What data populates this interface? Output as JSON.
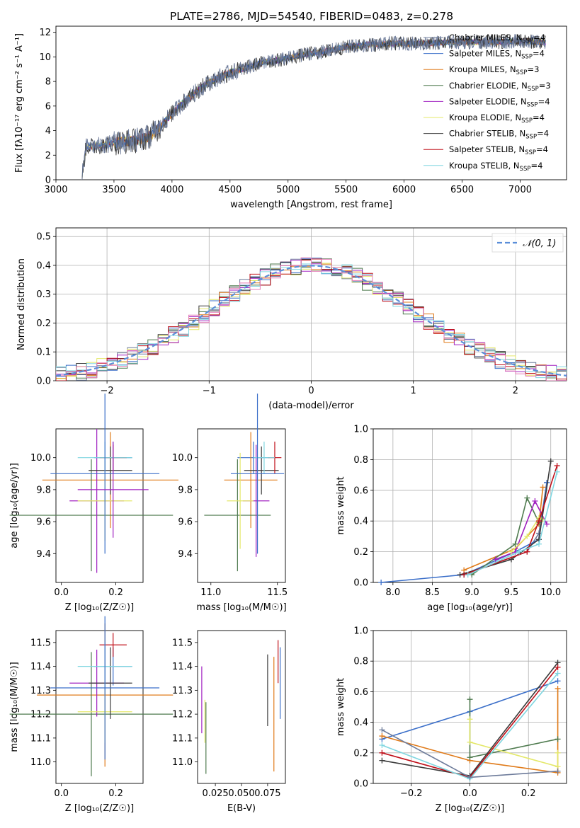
{
  "figure": {
    "title": "PLATE=2786, MJD=54540, FIBERID=0483, z=0.278",
    "models": [
      {
        "name": "Chabrier MILES",
        "nssp": "4",
        "color": "#6d7b9a"
      },
      {
        "name": "Salpeter MILES",
        "nssp": "4",
        "color": "#3b6fc9"
      },
      {
        "name": "Kroupa MILES",
        "nssp": "3",
        "color": "#e07b1a"
      },
      {
        "name": "Chabrier ELODIE",
        "nssp": "3",
        "color": "#4e7a4e"
      },
      {
        "name": "Salpeter ELODIE",
        "nssp": "4",
        "color": "#a020c0"
      },
      {
        "name": "Kroupa ELODIE",
        "nssp": "4",
        "color": "#e4e86a"
      },
      {
        "name": "Chabrier STELIB",
        "nssp": "4",
        "color": "#3a3a3a"
      },
      {
        "name": "Salpeter STELIB",
        "nssp": "4",
        "color": "#c0101a"
      },
      {
        "name": "Kroupa STELIB",
        "nssp": "4",
        "color": "#7fd6e0"
      }
    ],
    "extra_colors": {
      "pink": "#e57fb8",
      "blue": "#5b8ed9",
      "gauss": "#5b8ed9",
      "grid": "#b0b0b0"
    }
  },
  "chart_data": [
    {
      "id": "spectrum",
      "type": "line",
      "xlabel": "wavelength [Angstrom, rest frame]",
      "ylabel": "Flux [fλ10⁻¹⁷ erg cm⁻² s⁻¹ A⁻¹]",
      "xlim": [
        3000,
        7400
      ],
      "ylim": [
        0,
        12.5
      ],
      "xticks": [
        "3000",
        "3500",
        "4000",
        "4500",
        "5000",
        "5500",
        "6000",
        "6500",
        "7000"
      ],
      "yticks": [
        "0",
        "2",
        "4",
        "6",
        "8",
        "10",
        "12"
      ],
      "grid": false,
      "legend": "upper right",
      "legend_entries": [
        "Chabrier MILES, N_SSP=4",
        "Salpeter MILES, N_SSP=4",
        "Kroupa MILES, N_SSP=3",
        "Chabrier ELODIE, N_SSP=3",
        "Salpeter ELODIE, N_SSP=4",
        "Kroupa ELODIE, N_SSP=4",
        "Chabrier STELIB, N_SSP=4",
        "Salpeter STELIB, N_SSP=4",
        "Kroupa STELIB, N_SSP=4"
      ],
      "continuum_x": [
        3220,
        3260,
        3400,
        3500,
        3700,
        3800,
        3900,
        4000,
        4100,
        4200,
        4300,
        4400,
        4500,
        4600,
        4700,
        4800,
        4900,
        5000,
        5100,
        5200,
        5300,
        5400,
        5500,
        5600,
        5700,
        5800,
        5900,
        6000,
        6200,
        6400,
        6600,
        6800,
        7000,
        7200
      ],
      "continuum_y": [
        0,
        2.7,
        2.8,
        3.0,
        3.2,
        3.5,
        4.3,
        5.4,
        6.3,
        7.1,
        7.8,
        8.3,
        8.7,
        9.0,
        9.3,
        9.6,
        9.7,
        9.9,
        10.1,
        10.3,
        10.4,
        10.6,
        10.8,
        10.9,
        11.0,
        11.0,
        11.1,
        11.1,
        11.1,
        11.2,
        11.2,
        11.2,
        11.3,
        11.2
      ]
    },
    {
      "id": "residuals",
      "type": "histogram",
      "xlabel": "(data-model)/error",
      "ylabel": "Normed distribution",
      "xlim": [
        -2.5,
        2.5
      ],
      "ylim": [
        0,
        0.53
      ],
      "xticks": [
        "−2",
        "−1",
        "0",
        "1",
        "2"
      ],
      "yticks": [
        "0.0",
        "0.1",
        "0.2",
        "0.3",
        "0.4",
        "0.5"
      ],
      "grid": true,
      "legend": "upper right",
      "gauss_label": "𝒩(0, 1)",
      "bin_width": 0.1
    },
    {
      "id": "age-vs-Z",
      "type": "errorbar",
      "xlabel": "Z [log₁₀(Z/Z☉)]",
      "ylabel": "age  [log₁₀(age/yr)]",
      "xlim": [
        -0.02,
        0.3
      ],
      "ylim": [
        9.22,
        10.18
      ],
      "xticks": [
        "0.0",
        "0.2"
      ],
      "yticks": [
        "9.4",
        "9.6",
        "9.8",
        "10.0"
      ],
      "points": [
        {
          "x": 0.19,
          "y": 10.0,
          "xerr": 0.07,
          "yerr": 0.1,
          "model": "Salpeter MILES"
        },
        {
          "x": 0.18,
          "y": 9.86,
          "xerr": 0.25,
          "yerr": 0.3,
          "model": "Kroupa MILES"
        },
        {
          "x": 0.11,
          "y": 9.64,
          "xerr": 0.3,
          "yerr": 0.35,
          "model": "Chabrier ELODIE"
        },
        {
          "x": 0.13,
          "y": 9.73,
          "xerr": 0.1,
          "yerr": 0.45,
          "model": "Salpeter ELODIE"
        },
        {
          "x": 0.16,
          "y": 9.73,
          "xerr": 0.1,
          "yerr": 0.25,
          "model": "Kroupa ELODIE"
        },
        {
          "x": 0.18,
          "y": 9.92,
          "xerr": 0.08,
          "yerr": 0.15,
          "model": "Chabrier STELIB"
        },
        {
          "x": 0.19,
          "y": 10.0,
          "xerr": 0.05,
          "yerr": 0.08,
          "model": "Salpeter STELIB"
        },
        {
          "x": 0.16,
          "y": 10.0,
          "xerr": 0.1,
          "yerr": 0.1,
          "model": "Kroupa STELIB"
        },
        {
          "x": 0.16,
          "y": 9.9,
          "xerr": 0.2,
          "yerr": 0.5,
          "model": "Salpeter MILES"
        },
        {
          "x": 0.19,
          "y": 9.8,
          "xerr": 0.13,
          "yerr": 0.3,
          "model": "Salpeter ELODIE"
        }
      ]
    },
    {
      "id": "age-vs-mass",
      "type": "errorbar",
      "xlabel": "mass [log₁₀(M/M☉)]",
      "ylabel": "",
      "xlim": [
        10.9,
        11.56
      ],
      "ylim": [
        9.22,
        10.18
      ],
      "xticks": [
        "11.0",
        "11.5"
      ],
      "yticks": [
        "9.4",
        "9.6",
        "9.8",
        "10.0"
      ],
      "points": [
        {
          "x": 11.32,
          "y": 10.0,
          "xerr": 0.12,
          "yerr": 0.1,
          "model": "Salpeter MILES"
        },
        {
          "x": 11.3,
          "y": 9.86,
          "xerr": 0.2,
          "yerr": 0.3,
          "model": "Kroupa MILES"
        },
        {
          "x": 11.2,
          "y": 9.64,
          "xerr": 0.25,
          "yerr": 0.35,
          "model": "Chabrier ELODIE"
        },
        {
          "x": 11.34,
          "y": 9.73,
          "xerr": 0.1,
          "yerr": 0.35,
          "model": "Salpeter ELODIE"
        },
        {
          "x": 11.22,
          "y": 9.73,
          "xerr": 0.1,
          "yerr": 0.3,
          "model": "Kroupa ELODIE"
        },
        {
          "x": 11.38,
          "y": 9.92,
          "xerr": 0.13,
          "yerr": 0.15,
          "model": "Chabrier STELIB"
        },
        {
          "x": 11.48,
          "y": 10.0,
          "xerr": 0.05,
          "yerr": 0.1,
          "model": "Salpeter STELIB"
        },
        {
          "x": 11.4,
          "y": 10.0,
          "xerr": 0.08,
          "yerr": 0.1,
          "model": "Kroupa STELIB"
        },
        {
          "x": 11.35,
          "y": 9.9,
          "xerr": 0.2,
          "yerr": 0.5,
          "model": "Salpeter MILES"
        }
      ]
    },
    {
      "id": "weight-vs-age",
      "type": "line",
      "xlabel": "age  [log₁₀(age/yr)]",
      "ylabel": "mass weight",
      "xlim": [
        7.75,
        10.2
      ],
      "ylim": [
        0,
        1.0
      ],
      "xticks": [
        "8.0",
        "8.5",
        "9.0",
        "9.5",
        "10.0"
      ],
      "yticks": [
        "0.0",
        "0.2",
        "0.4",
        "0.6",
        "0.8",
        "1.0"
      ],
      "grid": true,
      "series": [
        {
          "model": "Chabrier MILES",
          "x": [
            8.9,
            9.7,
            9.85,
            9.95
          ],
          "y": [
            0.05,
            0.2,
            0.32,
            0.65
          ]
        },
        {
          "model": "Salpeter MILES",
          "x": [
            7.85,
            8.9,
            9.55,
            9.85,
            9.95
          ],
          "y": [
            0.0,
            0.05,
            0.2,
            0.28,
            0.65
          ]
        },
        {
          "model": "Kroupa MILES",
          "x": [
            8.9,
            9.55,
            9.85,
            9.9
          ],
          "y": [
            0.08,
            0.22,
            0.38,
            0.62
          ]
        },
        {
          "model": "Chabrier ELODIE",
          "x": [
            9.0,
            9.55,
            9.7,
            9.85
          ],
          "y": [
            0.05,
            0.25,
            0.55,
            0.39
          ]
        },
        {
          "model": "Salpeter ELODIE",
          "x": [
            9.3,
            9.55,
            9.8,
            9.95
          ],
          "y": [
            0.15,
            0.2,
            0.53,
            0.38
          ]
        },
        {
          "model": "Kroupa ELODIE",
          "x": [
            9.5,
            9.7,
            9.85,
            9.9
          ],
          "y": [
            0.2,
            0.3,
            0.42,
            0.41
          ]
        },
        {
          "model": "Chabrier STELIB",
          "x": [
            8.85,
            9.5,
            9.85,
            10.0
          ],
          "y": [
            0.05,
            0.15,
            0.28,
            0.79
          ]
        },
        {
          "model": "Salpeter STELIB",
          "x": [
            8.9,
            9.7,
            9.85,
            10.08
          ],
          "y": [
            0.05,
            0.2,
            0.4,
            0.76
          ]
        },
        {
          "model": "Kroupa STELIB",
          "x": [
            8.95,
            9.6,
            9.85,
            10.08
          ],
          "y": [
            0.05,
            0.2,
            0.25,
            0.72
          ]
        }
      ]
    },
    {
      "id": "mass-vs-Z",
      "type": "errorbar",
      "xlabel": "Z [log₁₀(Z/Z☉)]",
      "ylabel": "mass [log₁₀(M/M☉)]",
      "xlim": [
        -0.02,
        0.3
      ],
      "ylim": [
        10.91,
        11.55
      ],
      "xticks": [
        "0.0",
        "0.2"
      ],
      "yticks": [
        "11.0",
        "11.1",
        "11.2",
        "11.3",
        "11.4",
        "11.5"
      ],
      "points": [
        {
          "x": 0.19,
          "y": 11.4,
          "xerr": 0.07,
          "yerr": 0.08,
          "model": "Salpeter MILES"
        },
        {
          "x": 0.16,
          "y": 11.28,
          "xerr": 0.25,
          "yerr": 0.3,
          "model": "Kroupa MILES"
        },
        {
          "x": 0.11,
          "y": 11.2,
          "xerr": 0.3,
          "yerr": 0.26,
          "model": "Chabrier ELODIE"
        },
        {
          "x": 0.13,
          "y": 11.33,
          "xerr": 0.1,
          "yerr": 0.14,
          "model": "Salpeter ELODIE"
        },
        {
          "x": 0.16,
          "y": 11.21,
          "xerr": 0.1,
          "yerr": 0.13,
          "model": "Kroupa ELODIE"
        },
        {
          "x": 0.18,
          "y": 11.33,
          "xerr": 0.08,
          "yerr": 0.15,
          "model": "Chabrier STELIB"
        },
        {
          "x": 0.19,
          "y": 11.49,
          "xerr": 0.05,
          "yerr": 0.05,
          "model": "Salpeter STELIB"
        },
        {
          "x": 0.16,
          "y": 11.4,
          "xerr": 0.1,
          "yerr": 0.1,
          "model": "Kroupa STELIB"
        },
        {
          "x": 0.16,
          "y": 11.31,
          "xerr": 0.2,
          "yerr": 0.3,
          "model": "Salpeter MILES"
        }
      ]
    },
    {
      "id": "mass-vs-ebv",
      "type": "errorbar",
      "xlabel": "E(B-V)",
      "ylabel": "",
      "xlim": [
        0.008,
        0.092
      ],
      "ylim": [
        10.91,
        11.55
      ],
      "xticks": [
        "0.025",
        "0.050",
        "0.075"
      ],
      "yticks": [
        "11.0",
        "11.1",
        "11.2",
        "11.3",
        "11.4",
        "11.5"
      ],
      "points": [
        {
          "x": 0.012,
          "y": 11.26,
          "yerr": 0.14,
          "model": "Salpeter ELODIE"
        },
        {
          "x": 0.015,
          "y": 11.17,
          "yerr": 0.09,
          "model": "Kroupa ELODIE"
        },
        {
          "x": 0.016,
          "y": 11.1,
          "yerr": 0.15,
          "model": "Chabrier ELODIE"
        },
        {
          "x": 0.075,
          "y": 11.3,
          "yerr": 0.15,
          "model": "Chabrier STELIB"
        },
        {
          "x": 0.081,
          "y": 11.2,
          "yerr": 0.24,
          "model": "Kroupa MILES"
        },
        {
          "x": 0.085,
          "y": 11.42,
          "yerr": 0.09,
          "model": "Salpeter STELIB"
        },
        {
          "x": 0.087,
          "y": 11.33,
          "yerr": 0.15,
          "model": "Salpeter MILES"
        }
      ]
    },
    {
      "id": "weight-vs-Z",
      "type": "line",
      "xlabel": "Z [log₁₀(Z/Z☉)]",
      "ylabel": "mass weight",
      "xlim": [
        -0.33,
        0.33
      ],
      "ylim": [
        0,
        1.0
      ],
      "xticks": [
        "−0.2",
        "0.0",
        "0.2"
      ],
      "yticks": [
        "0.0",
        "0.2",
        "0.4",
        "0.6",
        "0.8",
        "1.0"
      ],
      "grid": true,
      "series": [
        {
          "model": "Salpeter MILES",
          "x": [
            -0.3,
            0.0,
            0.3
          ],
          "y": [
            0.29,
            0.47,
            0.67
          ]
        },
        {
          "model": "Kroupa MILES",
          "x": [
            -0.3,
            0.0,
            0.3,
            0.3
          ],
          "y": [
            0.31,
            0.15,
            0.07,
            0.62
          ]
        },
        {
          "model": "Chabrier ELODIE",
          "x": [
            0.0,
            0.0,
            0.3
          ],
          "y": [
            0.55,
            0.17,
            0.29
          ]
        },
        {
          "model": "Kroupa ELODIE",
          "x": [
            0.0,
            0.0,
            0.3,
            0.3
          ],
          "y": [
            0.42,
            0.27,
            0.11,
            0.2
          ]
        },
        {
          "model": "Chabrier STELIB",
          "x": [
            -0.3,
            0.0,
            0.3
          ],
          "y": [
            0.15,
            0.05,
            0.79
          ]
        },
        {
          "model": "Salpeter STELIB",
          "x": [
            -0.3,
            0.0,
            0.3
          ],
          "y": [
            0.2,
            0.04,
            0.76
          ]
        },
        {
          "model": "Kroupa STELIB",
          "x": [
            -0.3,
            0.0,
            0.3
          ],
          "y": [
            0.25,
            0.03,
            0.72
          ]
        },
        {
          "model": "Chabrier MILES",
          "x": [
            -0.3,
            0.0,
            0.3
          ],
          "y": [
            0.35,
            0.04,
            0.08
          ]
        }
      ]
    }
  ]
}
